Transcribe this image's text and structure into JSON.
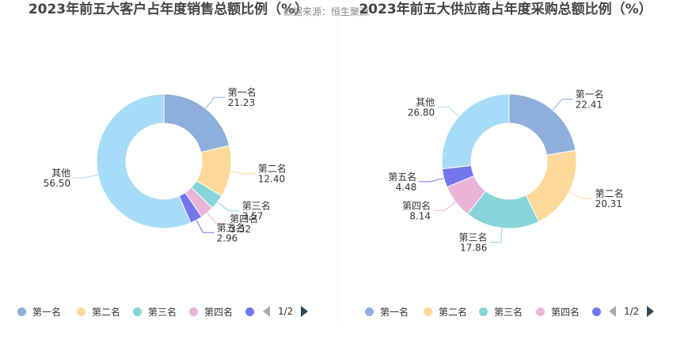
{
  "source_text": "数据来源：恒生聚源",
  "chart_data": [
    {
      "type": "pie",
      "donut": true,
      "title": "2023年前五大客户占年度销售总额比例（%）",
      "categories": [
        "第一名",
        "第二名",
        "第三名",
        "第四名",
        "第五名",
        "其他"
      ],
      "values": [
        21.23,
        12.4,
        3.57,
        3.32,
        2.96,
        56.5
      ],
      "value_labels": [
        "21.23",
        "12.40",
        "3.57",
        "3.32",
        "2.96",
        "56.50"
      ],
      "colors": [
        "#8eaedb",
        "#fcd899",
        "#85d5d9",
        "#e8b5d8",
        "#7377ee",
        "#a7dcf8"
      ],
      "legend": {
        "position": "bottom",
        "visible": [
          "第一名",
          "第二名",
          "第三名",
          "第四名",
          "第五名"
        ],
        "page": "1/2"
      }
    },
    {
      "type": "pie",
      "donut": true,
      "title": "2023年前五大供应商占年度采购总额比例（%）",
      "categories": [
        "第一名",
        "第二名",
        "第三名",
        "第四名",
        "第五名",
        "其他"
      ],
      "values": [
        22.41,
        20.31,
        17.86,
        8.14,
        4.48,
        26.8
      ],
      "value_labels": [
        "22.41",
        "20.31",
        "17.86",
        "8.14",
        "4.48",
        "26.80"
      ],
      "colors": [
        "#8eaedb",
        "#fcd899",
        "#85d5d9",
        "#e8b5d8",
        "#7377ee",
        "#a7dcf8"
      ],
      "legend": {
        "position": "bottom",
        "visible": [
          "第一名",
          "第二名",
          "第三名",
          "第四名",
          "第五名"
        ],
        "page": "1/2"
      }
    }
  ]
}
